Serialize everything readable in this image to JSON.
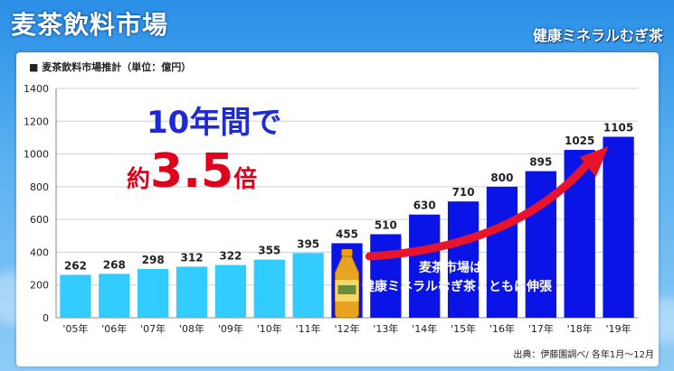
{
  "page_title": "麦茶飲料市場",
  "brand_logo": "健康ミネラルむぎ茶",
  "chart_data": {
    "type": "bar",
    "title": "■ 麦茶飲料市場推計（単位：億円）",
    "categories": [
      "'05年",
      "'06年",
      "'07年",
      "'08年",
      "'09年",
      "'10年",
      "'11年",
      "'12年",
      "'13年",
      "'14年",
      "'15年",
      "'16年",
      "'17年",
      "'18年",
      "'19年"
    ],
    "values": [
      262,
      268,
      298,
      312,
      322,
      355,
      395,
      455,
      510,
      630,
      710,
      800,
      895,
      1025,
      1105
    ],
    "ylim": [
      0,
      1400
    ],
    "yticks": [
      0,
      200,
      400,
      600,
      800,
      1000,
      1200,
      1400
    ],
    "bar_colors": {
      "early": "#33ccff",
      "late": "#0a14e6"
    },
    "grid": true,
    "unit": "億円"
  },
  "headline": {
    "line1": "10年間で",
    "line2_prefix": "約",
    "line2_value": "3.5",
    "line2_suffix": "倍"
  },
  "callout": {
    "line1": "麦茶市場は、",
    "line2": "健康ミネラルむぎ茶とともに伸張"
  },
  "source_note": "出典：伊藤園調べ/ 各年1月～12月",
  "colors": {
    "headline_blue": "#1e2ad6",
    "headline_red": "#e0001b",
    "arrow": "#e8142b"
  }
}
